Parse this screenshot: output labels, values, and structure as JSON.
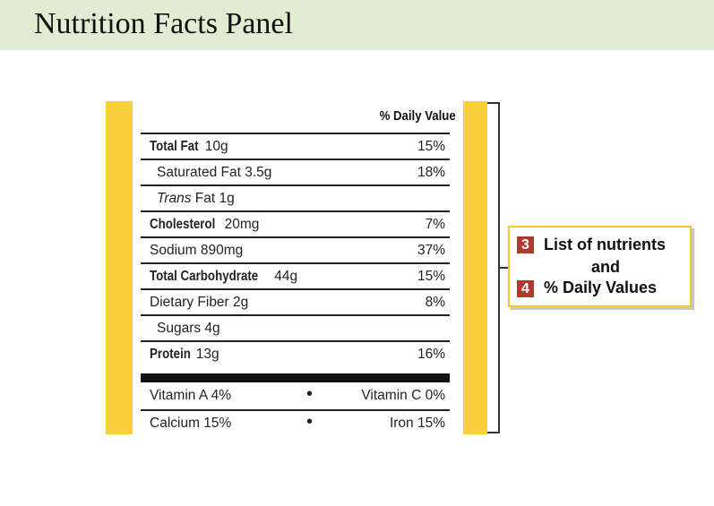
{
  "title": "Nutrition Facts Panel",
  "label": {
    "daily_value_header": "% Daily Value",
    "nutrients": [
      {
        "name": "Total Fat",
        "amount": "10g",
        "dv": "15%"
      },
      {
        "name": "Saturated Fat 3.5g",
        "dv": "18%"
      },
      {
        "name_italic": "Trans",
        "name_rest": "Fat 1g",
        "dv": ""
      },
      {
        "name": "Cholesterol",
        "amount": "20mg",
        "dv": "7%"
      },
      {
        "name": "Sodium 890mg",
        "dv": "37%"
      },
      {
        "name": "Total Carbohydrate",
        "amount": "44g",
        "dv": "15%"
      },
      {
        "name": "Dietary Fiber 2g",
        "dv": "8%"
      },
      {
        "name": "Sugars 4g",
        "dv": ""
      },
      {
        "name": "Protein",
        "amount": "13g",
        "dv": "16%"
      }
    ],
    "vitamins": [
      {
        "left": "Vitamin A 4%",
        "sep": "•",
        "right": "Vitamin C 0%"
      },
      {
        "left": "Calcium 15%",
        "sep": "•",
        "right": "Iron 15%"
      }
    ]
  },
  "callout": {
    "badge_1": "3",
    "line_1": "List of nutrients",
    "line_2": "and",
    "badge_2": "4",
    "line_3": "% Daily Values"
  },
  "colors": {
    "title_bar": "#e2ecd2",
    "side_bands": "#f9cf3c",
    "badge": "#b03a2e",
    "callout_border": "#f6c929"
  }
}
